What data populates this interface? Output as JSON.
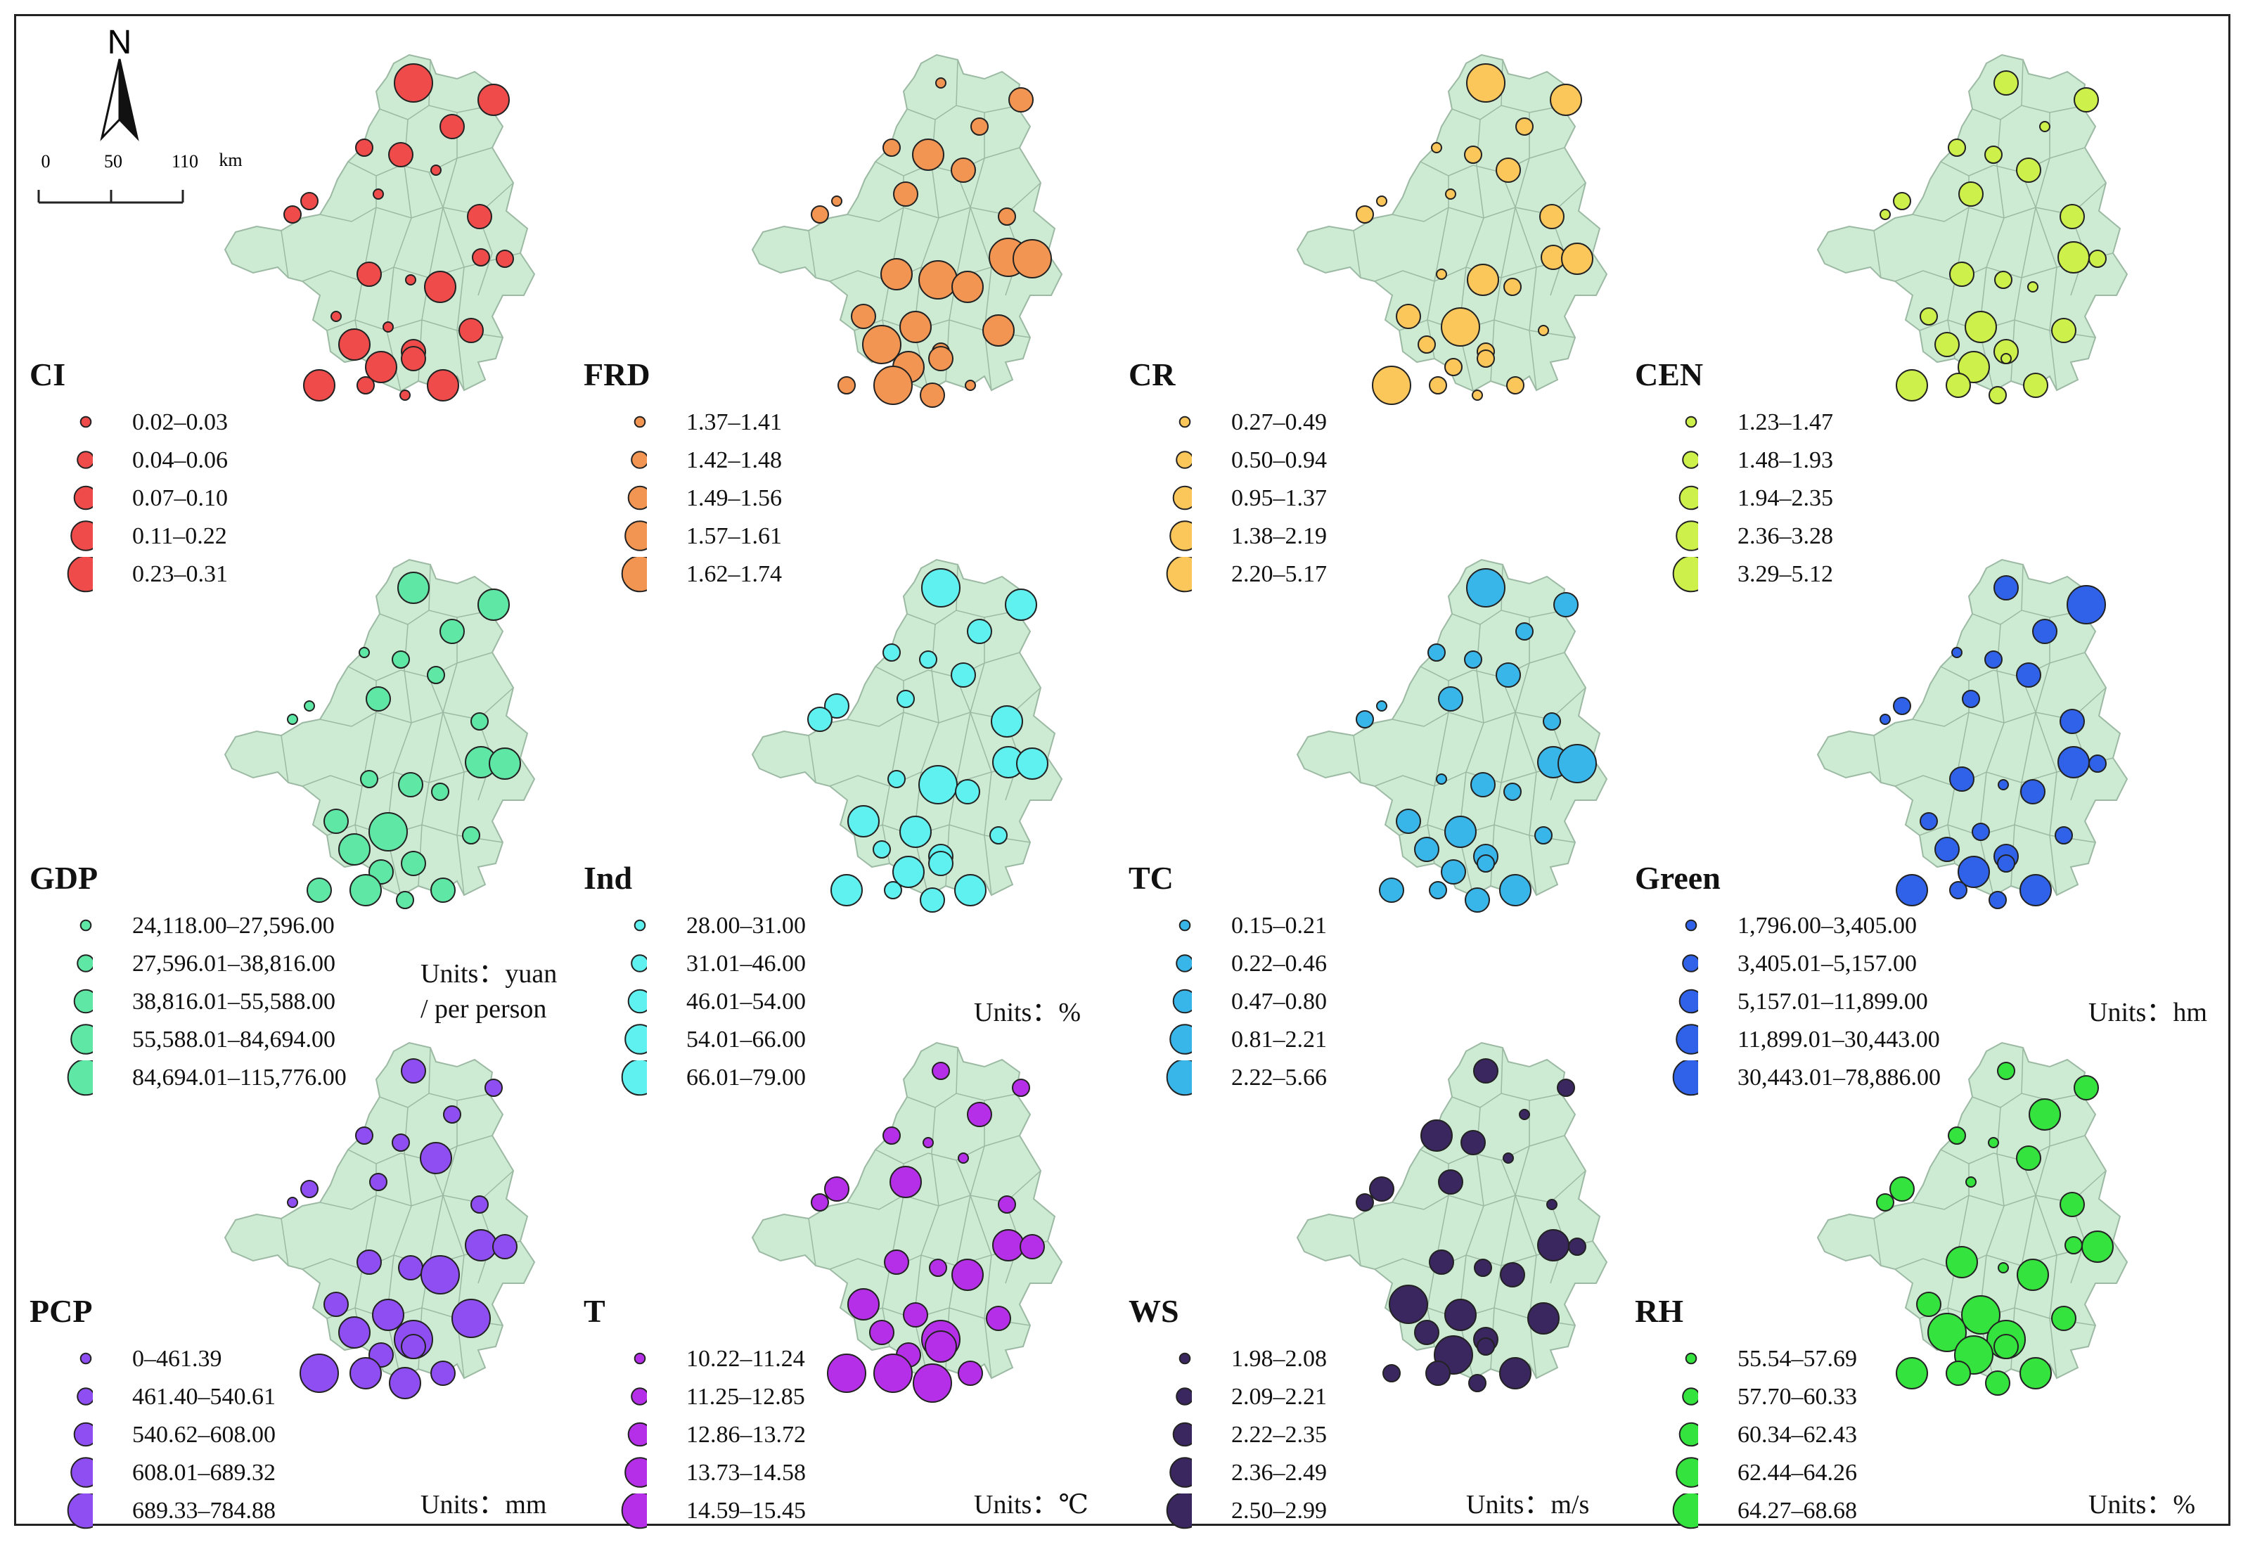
{
  "north_label": "N",
  "scale_bar": {
    "ticks": [
      "0",
      "50",
      "110"
    ],
    "unit": "km"
  },
  "colors": {
    "map_fill": "#cdebd3",
    "map_stroke": "#9cb9a3",
    "CI": "#ef4b4b",
    "FRD": "#f39552",
    "CR": "#fbc75a",
    "CEN": "#cdf04a",
    "GDP": "#5fe7a6",
    "Ind": "#5ff0f0",
    "TC": "#38b6ea",
    "Green": "#2f62e8",
    "PCP": "#8e4ef2",
    "T": "#b52fe8",
    "WS": "#3a2760",
    "RH": "#35e33f"
  },
  "panels": [
    {
      "id": "CI",
      "title": "CI",
      "units": "",
      "classes": [
        "0.02–0.03",
        "0.04–0.06",
        "0.07–0.10",
        "0.11–0.22",
        "0.23–0.31"
      ]
    },
    {
      "id": "FRD",
      "title": "FRD",
      "units": "",
      "classes": [
        "1.37–1.41",
        "1.42–1.48",
        "1.49–1.56",
        "1.57–1.61",
        "1.62–1.74"
      ]
    },
    {
      "id": "CR",
      "title": "CR",
      "units": "",
      "classes": [
        "0.27–0.49",
        "0.50–0.94",
        "0.95–1.37",
        "1.38–2.19",
        "2.20–5.17"
      ]
    },
    {
      "id": "CEN",
      "title": "CEN",
      "units": "",
      "classes": [
        "1.23–1.47",
        "1.48–1.93",
        "1.94–2.35",
        "2.36–3.28",
        "3.29–5.12"
      ]
    },
    {
      "id": "GDP",
      "title": "GDP",
      "units": "Units：yuan\n/ per person",
      "classes": [
        "24,118.00–27,596.00",
        "27,596.01–38,816.00",
        "38,816.01–55,588.00",
        "55,588.01–84,694.00",
        "84,694.01–115,776.00"
      ]
    },
    {
      "id": "Ind",
      "title": "Ind",
      "units": "Units：%",
      "classes": [
        "28.00–31.00",
        "31.01–46.00",
        "46.01–54.00",
        "54.01–66.00",
        "66.01–79.00"
      ]
    },
    {
      "id": "TC",
      "title": "TC",
      "units": "",
      "classes": [
        "0.15–0.21",
        "0.22–0.46",
        "0.47–0.80",
        "0.81–2.21",
        "2.22–5.66"
      ]
    },
    {
      "id": "Green",
      "title": "Green",
      "units": "Units：hm",
      "classes": [
        "1,796.00–3,405.00",
        "3,405.01–5,157.00",
        "5,157.01–11,899.00",
        "11,899.01–30,443.00",
        "30,443.01–78,886.00"
      ]
    },
    {
      "id": "PCP",
      "title": "PCP",
      "units": "Units：mm",
      "classes": [
        "0–461.39",
        "461.40–540.61",
        "540.62–608.00",
        "608.01–689.32",
        "689.33–784.88"
      ]
    },
    {
      "id": "T",
      "title": "T",
      "units": "Units：℃",
      "classes": [
        "10.22–11.24",
        "11.25–12.85",
        "12.86–13.72",
        "13.73–14.58",
        "14.59–15.45"
      ]
    },
    {
      "id": "WS",
      "title": "WS",
      "units": "Units：m/s",
      "classes": [
        "1.98–2.08",
        "2.09–2.21",
        "2.22–2.35",
        "2.36–2.49",
        "2.50–2.99"
      ]
    },
    {
      "id": "RH",
      "title": "RH",
      "units": "Units：%",
      "classes": [
        "55.54–57.69",
        "57.70–60.33",
        "60.34–62.43",
        "62.44–64.26",
        "64.27–68.68"
      ]
    }
  ],
  "symbol_classes": {
    "CI": [
      5,
      4,
      3,
      2,
      3,
      1,
      2,
      1,
      3,
      2,
      2,
      1,
      3,
      2,
      4,
      3,
      1,
      4,
      3,
      1,
      4,
      3,
      4,
      2,
      4,
      1
    ],
    "FRD": [
      1,
      3,
      2,
      2,
      4,
      3,
      1,
      3,
      2,
      2,
      5,
      5,
      4,
      5,
      4,
      4,
      4,
      5,
      2,
      3,
      4,
      3,
      2,
      5,
      1,
      3
    ],
    "CR": [
      5,
      4,
      2,
      1,
      2,
      3,
      1,
      1,
      3,
      2,
      3,
      4,
      1,
      4,
      2,
      1,
      5,
      2,
      2,
      3,
      2,
      2,
      5,
      2,
      2,
      1
    ],
    "CEN": [
      3,
      3,
      1,
      2,
      2,
      3,
      2,
      3,
      3,
      1,
      4,
      2,
      3,
      2,
      1,
      3,
      4,
      3,
      3,
      2,
      4,
      1,
      4,
      3,
      3,
      2
    ],
    "GDP": [
      4,
      4,
      3,
      1,
      2,
      2,
      1,
      3,
      2,
      1,
      4,
      3,
      2,
      4,
      2,
      2,
      5,
      4,
      1,
      3,
      3,
      3,
      3,
      4,
      3,
      2
    ],
    "Ind": [
      5,
      4,
      3,
      2,
      2,
      3,
      3,
      2,
      4,
      3,
      4,
      5,
      2,
      4,
      3,
      2,
      4,
      2,
      3,
      4,
      4,
      3,
      4,
      2,
      4,
      3
    ],
    "TC": [
      5,
      3,
      2,
      2,
      2,
      3,
      1,
      3,
      2,
      2,
      4,
      3,
      1,
      5,
      2,
      2,
      4,
      3,
      3,
      3,
      3,
      2,
      3,
      2,
      4,
      3
    ],
    "Green": [
      3,
      5,
      3,
      1,
      2,
      3,
      2,
      2,
      3,
      1,
      4,
      1,
      3,
      2,
      3,
      2,
      2,
      3,
      3,
      2,
      4,
      2,
      4,
      2,
      4,
      2
    ],
    "PCP": [
      3,
      2,
      2,
      2,
      2,
      4,
      2,
      2,
      2,
      1,
      4,
      3,
      3,
      3,
      5,
      5,
      4,
      4,
      5,
      3,
      3,
      3,
      5,
      4,
      3,
      4
    ],
    "T": [
      2,
      2,
      3,
      2,
      1,
      1,
      3,
      4,
      2,
      2,
      4,
      2,
      3,
      3,
      4,
      3,
      3,
      3,
      5,
      4,
      3,
      4,
      5,
      5,
      3,
      5
    ],
    "WS": [
      3,
      2,
      1,
      4,
      3,
      1,
      3,
      3,
      1,
      2,
      4,
      2,
      3,
      2,
      3,
      4,
      4,
      3,
      3,
      5,
      5,
      2,
      2,
      3,
      4,
      2
    ],
    "RH": [
      2,
      3,
      4,
      2,
      1,
      3,
      3,
      1,
      3,
      2,
      2,
      1,
      4,
      4,
      4,
      3,
      5,
      5,
      5,
      3,
      5,
      3,
      4,
      3,
      4,
      3
    ]
  }
}
